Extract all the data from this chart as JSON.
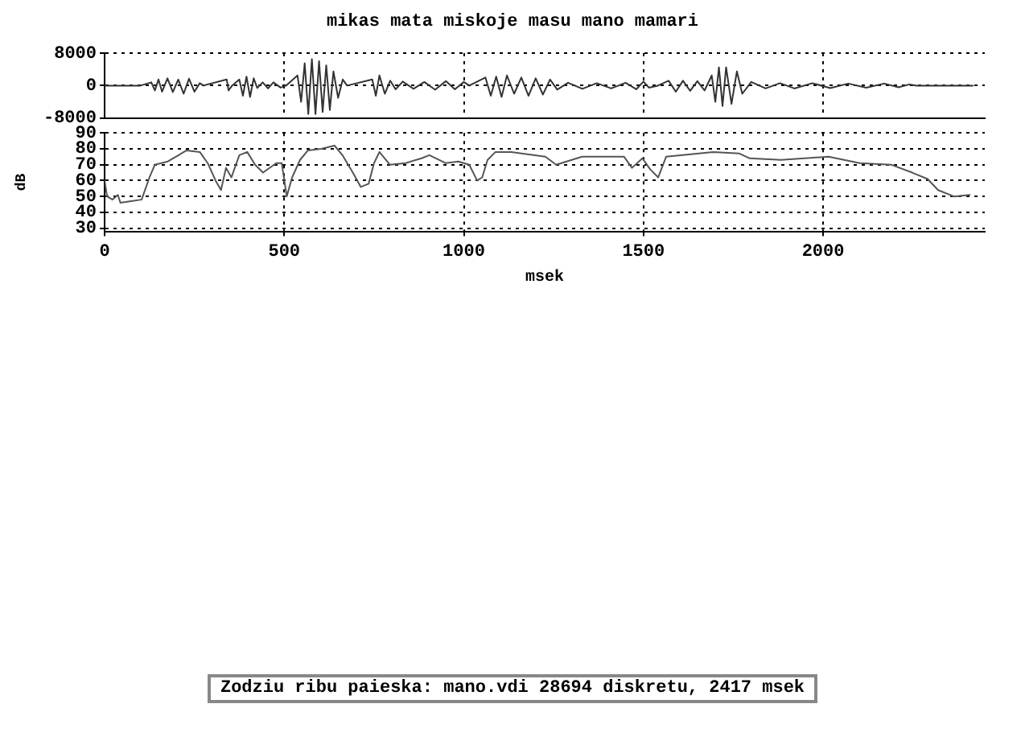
{
  "chart_data": [
    {
      "type": "line",
      "title": "mikas mata miskoje masu mano mamari",
      "color": "#333333",
      "x": [
        0,
        100,
        130,
        140,
        150,
        160,
        175,
        190,
        205,
        220,
        235,
        250,
        265,
        275,
        340,
        345,
        355,
        375,
        385,
        395,
        405,
        415,
        425,
        440,
        455,
        470,
        490,
        505,
        537,
        547,
        557,
        567,
        577,
        587,
        597,
        607,
        617,
        627,
        637,
        650,
        663,
        675,
        745,
        755,
        765,
        780,
        795,
        810,
        830,
        860,
        890,
        920,
        950,
        975,
        1000,
        1015,
        1060,
        1075,
        1090,
        1105,
        1120,
        1140,
        1160,
        1180,
        1200,
        1220,
        1240,
        1260,
        1290,
        1330,
        1370,
        1410,
        1450,
        1480,
        1500,
        1515,
        1540,
        1570,
        1590,
        1610,
        1630,
        1650,
        1670,
        1690,
        1700,
        1710,
        1720,
        1730,
        1745,
        1760,
        1775,
        1800,
        1840,
        1880,
        1920,
        1970,
        2020,
        2070,
        2120,
        2170,
        2210,
        2240,
        2260,
        2417
      ],
      "values": [
        0,
        0,
        800,
        -1200,
        1500,
        -1500,
        1800,
        -1600,
        1500,
        -2000,
        1700,
        -1500,
        600,
        0,
        1500,
        -1200,
        0,
        1500,
        -2500,
        2200,
        -2800,
        1800,
        -600,
        800,
        -700,
        800,
        -500,
        0,
        2500,
        -4000,
        5500,
        -7000,
        6500,
        -7000,
        6000,
        -6500,
        5000,
        -6000,
        3500,
        -3000,
        1500,
        0,
        1500,
        -2500,
        2500,
        -2000,
        1200,
        -900,
        1000,
        -800,
        900,
        -1000,
        1100,
        -900,
        900,
        0,
        2000,
        -2500,
        2200,
        -2800,
        2500,
        -2000,
        2000,
        -2500,
        1800,
        -2200,
        1500,
        -1000,
        700,
        -800,
        600,
        -700,
        700,
        -900,
        1000,
        -500,
        0,
        1200,
        -1500,
        1200,
        -1300,
        1100,
        -1200,
        2500,
        -4000,
        4500,
        -5000,
        4500,
        -4500,
        3500,
        -2000,
        900,
        -700,
        600,
        -700,
        600,
        -600,
        500,
        -500,
        500,
        -400,
        300,
        0,
        0
      ],
      "xlim": [
        0,
        2450
      ],
      "xticks": [
        0,
        500,
        1000,
        1500,
        2000
      ],
      "ylim": [
        -8000,
        8000
      ],
      "yticks": [
        -8000,
        0,
        8000
      ],
      "grid": true,
      "tick_labels": "y"
    },
    {
      "type": "line",
      "xlabel": "msek",
      "ylabel": "dB",
      "color": "#555555",
      "x": [
        0,
        7,
        22,
        37,
        44,
        74,
        103,
        125,
        140,
        176,
        206,
        228,
        265,
        287,
        309,
        324,
        338,
        353,
        375,
        397,
        419,
        441,
        478,
        493,
        507,
        522,
        544,
        566,
        603,
        640,
        662,
        691,
        713,
        735,
        750,
        765,
        794,
        838,
        882,
        904,
        949,
        985,
        1015,
        1037,
        1051,
        1066,
        1088,
        1132,
        1227,
        1257,
        1286,
        1329,
        1446,
        1468,
        1497,
        1519,
        1541,
        1563,
        1694,
        1767,
        1796,
        1883,
        2015,
        2102,
        2189,
        2248,
        2291,
        2320,
        2364,
        2408
      ],
      "values": [
        60,
        50,
        48,
        51,
        46,
        47,
        48,
        62,
        70,
        72,
        76,
        79,
        78,
        71,
        60,
        54,
        68,
        62,
        76,
        78,
        70,
        65,
        71,
        71,
        50,
        62,
        73,
        79,
        80,
        82,
        76,
        65,
        56,
        58,
        71,
        78,
        70,
        71,
        74,
        76,
        71,
        72,
        70,
        60,
        62,
        73,
        78,
        78,
        75,
        70,
        72,
        75,
        75,
        68,
        74,
        67,
        62,
        75,
        78,
        77,
        74,
        73,
        75,
        71,
        70,
        65,
        61,
        54,
        50,
        51
      ],
      "xlim": [
        0,
        2450
      ],
      "xticks": [
        0,
        500,
        1000,
        1500,
        2000
      ],
      "ylim": [
        28,
        90
      ],
      "yticks": [
        30,
        40,
        50,
        60,
        70,
        80,
        90
      ],
      "grid": true,
      "annotations": [
        "Zodziu ribu paieska: mano.vdi 28694 diskretu, 2417 msek"
      ]
    }
  ]
}
